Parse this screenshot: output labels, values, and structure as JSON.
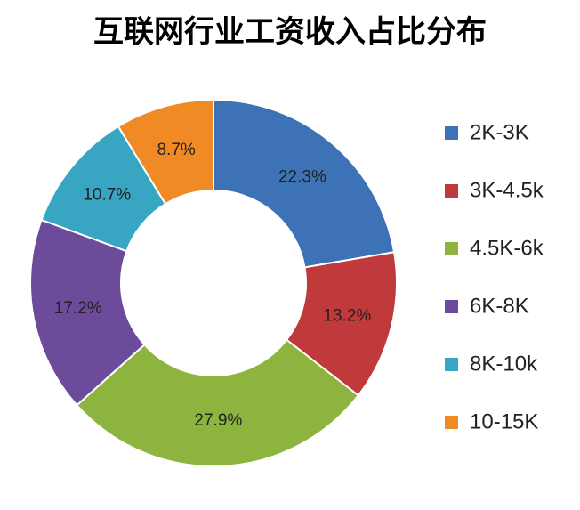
{
  "chart_data": {
    "type": "donut",
    "title": "互联网行业工资收入占比分布",
    "categories": [
      "2K-3K",
      "3K-4.5k",
      "4.5K-6k",
      "6K-8K",
      "8K-10k",
      "10-15K"
    ],
    "values": [
      22.3,
      13.2,
      27.9,
      17.2,
      10.7,
      8.7
    ],
    "value_labels": [
      "22.3%",
      "13.2%",
      "27.9%",
      "17.2%",
      "10.7%",
      "8.7%"
    ],
    "colors": [
      "#3d72b6",
      "#c0393b",
      "#8cb43f",
      "#6b4b9a",
      "#38a5c3",
      "#f08a25"
    ],
    "legend": "right"
  }
}
